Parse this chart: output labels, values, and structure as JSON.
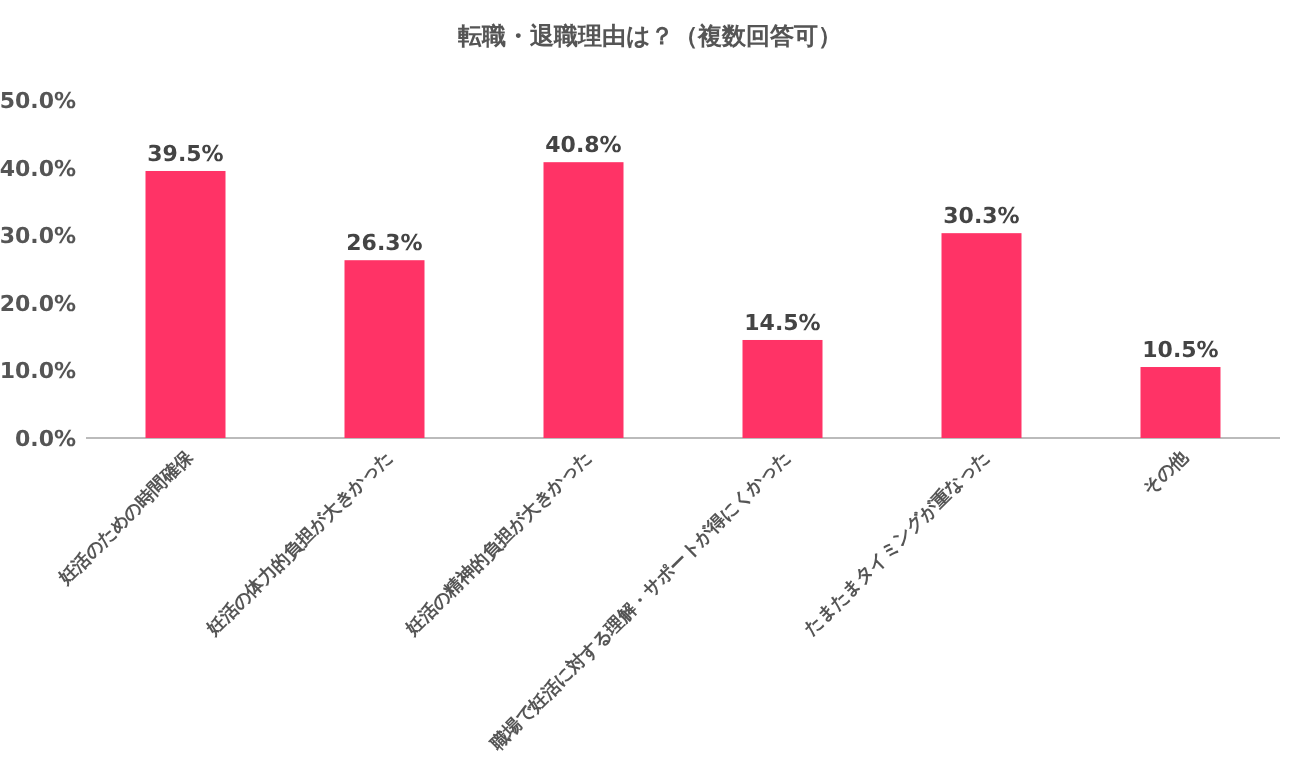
{
  "chart_data": {
    "type": "bar",
    "title": "転職・退職理由は？（複数回答可）",
    "categories": [
      "妊活のための時間確保",
      "妊活の体力的負担が大きかった",
      "妊活の精神的負担が大きかった",
      "職場で妊活に対する理解・サポートが得にくかった",
      "たまたまタイミングが重なった",
      "その他"
    ],
    "values": [
      39.5,
      26.3,
      40.8,
      14.5,
      30.3,
      10.5
    ],
    "value_labels": [
      "39.5%",
      "26.3%",
      "40.8%",
      "14.5%",
      "30.3%",
      "10.5%"
    ],
    "color": "#ff3366",
    "ylim": [
      0,
      50
    ],
    "yticks": [
      {
        "value": 0,
        "label": "0.0%"
      },
      {
        "value": 10,
        "label": "10.0%"
      },
      {
        "value": 20,
        "label": "20.0%"
      },
      {
        "value": 30,
        "label": "30.0%"
      },
      {
        "value": 40,
        "label": "40.0%"
      },
      {
        "value": 50,
        "label": "50.0%"
      }
    ]
  }
}
